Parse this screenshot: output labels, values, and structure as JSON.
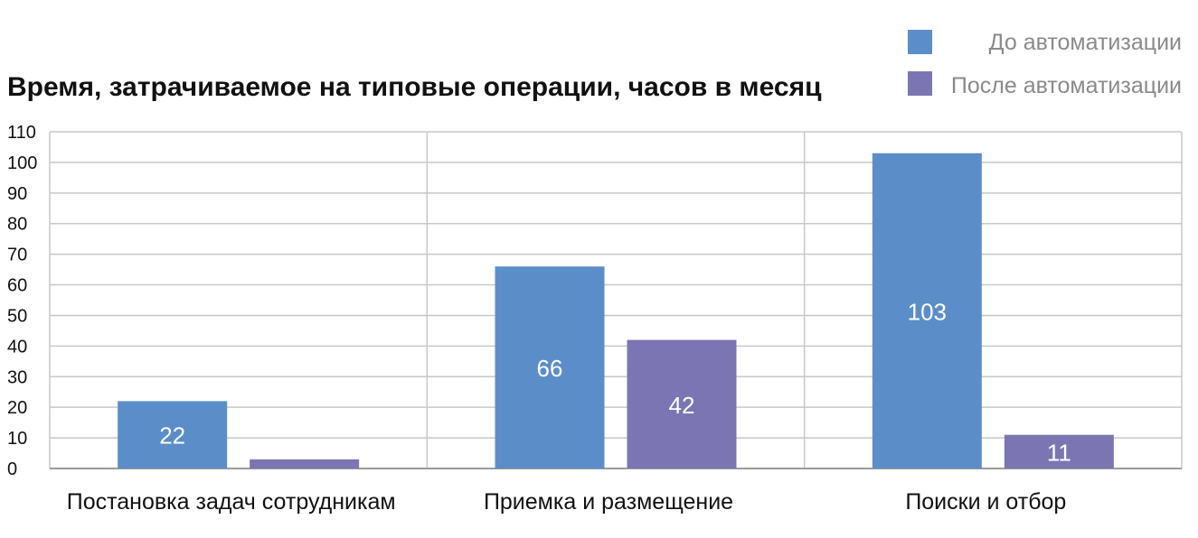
{
  "chart_data": {
    "type": "bar",
    "title": "Время, затрачиваемое на типовые операции, часов в месяц",
    "categories": [
      "Постановка задач сотрудникам",
      "Приемка и размещение",
      "Поиски и отбор"
    ],
    "series": [
      {
        "name": "До автоматизации",
        "color": "#5b8ec9",
        "values": [
          22,
          66,
          103
        ],
        "labels": [
          "22",
          "66",
          "103"
        ]
      },
      {
        "name": "После автоматизации",
        "color": "#7b76b3",
        "values": [
          3,
          42,
          11
        ],
        "labels": [
          "",
          "42",
          "11"
        ]
      }
    ],
    "yticks": [
      "0",
      "10",
      "20",
      "30",
      "40",
      "50",
      "60",
      "70",
      "80",
      "90",
      "100",
      "110"
    ],
    "ylim": [
      0,
      110
    ],
    "grid": true,
    "legend": "top-right"
  }
}
